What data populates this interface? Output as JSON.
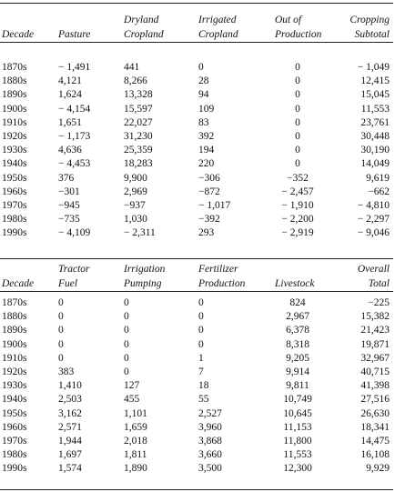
{
  "table1": {
    "headers": [
      [
        "",
        "Decade"
      ],
      [
        "",
        "Pasture"
      ],
      [
        "Dryland",
        "Cropland"
      ],
      [
        "Irrigated",
        "Cropland"
      ],
      [
        "Out of",
        "Production"
      ],
      [
        "Cropping",
        "Subtotal"
      ]
    ],
    "rows": [
      [
        "1870s",
        "− 1,491",
        "441",
        "0",
        "0",
        "− 1,049"
      ],
      [
        "1880s",
        "4,121",
        "8,266",
        "28",
        "0",
        "12,415"
      ],
      [
        "1890s",
        "1,624",
        "13,328",
        "94",
        "0",
        "15,045"
      ],
      [
        "1900s",
        "− 4,154",
        "15,597",
        "109",
        "0",
        "11,553"
      ],
      [
        "1910s",
        "1,651",
        "22,027",
        "83",
        "0",
        "23,761"
      ],
      [
        "1920s",
        "− 1,173",
        "31,230",
        "392",
        "0",
        "30,448"
      ],
      [
        "1930s",
        "4,636",
        "25,359",
        "194",
        "0",
        "30,190"
      ],
      [
        "1940s",
        "− 4,453",
        "18,283",
        "220",
        "0",
        "14,049"
      ],
      [
        "1950s",
        "376",
        "9,900",
        "−306",
        "−352",
        "9,619"
      ],
      [
        "1960s",
        "−301",
        "2,969",
        "−872",
        "− 2,457",
        "−662"
      ],
      [
        "1970s",
        "−945",
        "−937",
        "− 1,017",
        "− 1,910",
        "− 4,810"
      ],
      [
        "1980s",
        "−735",
        "1,030",
        "−392",
        "− 2,200",
        "− 2,297"
      ],
      [
        "1990s",
        "− 4,109",
        "− 2,311",
        "293",
        "− 2,919",
        "− 9,046"
      ]
    ]
  },
  "table2": {
    "headers": [
      [
        "",
        "Decade"
      ],
      [
        "Tractor",
        "Fuel"
      ],
      [
        "Irrigation",
        "Pumping"
      ],
      [
        "Fertilizer",
        "Production"
      ],
      [
        "",
        "Livestock"
      ],
      [
        "Overall",
        "Total"
      ]
    ],
    "rows": [
      [
        "1870s",
        "0",
        "0",
        "0",
        "824",
        "−225"
      ],
      [
        "1880s",
        "0",
        "0",
        "0",
        "2,967",
        "15,382"
      ],
      [
        "1890s",
        "0",
        "0",
        "0",
        "6,378",
        "21,423"
      ],
      [
        "1900s",
        "0",
        "0",
        "0",
        "8,318",
        "19,871"
      ],
      [
        "1910s",
        "0",
        "0",
        "1",
        "9,205",
        "32,967"
      ],
      [
        "1920s",
        "383",
        "0",
        "7",
        "9,914",
        "40,715"
      ],
      [
        "1930s",
        "1,410",
        "127",
        "18",
        "9,811",
        "41,398"
      ],
      [
        "1940s",
        "2,503",
        "455",
        "55",
        "10,749",
        "27,516"
      ],
      [
        "1950s",
        "3,162",
        "1,101",
        "2,527",
        "10,645",
        "26,630"
      ],
      [
        "1960s",
        "2,571",
        "1,659",
        "3,960",
        "11,153",
        "18,341"
      ],
      [
        "1970s",
        "1,944",
        "2,018",
        "3,868",
        "11,800",
        "14,475"
      ],
      [
        "1980s",
        "1,697",
        "1,811",
        "3,660",
        "11,553",
        "16,108"
      ],
      [
        "1990s",
        "1,574",
        "1,890",
        "3,500",
        "12,300",
        "9,929"
      ]
    ]
  }
}
